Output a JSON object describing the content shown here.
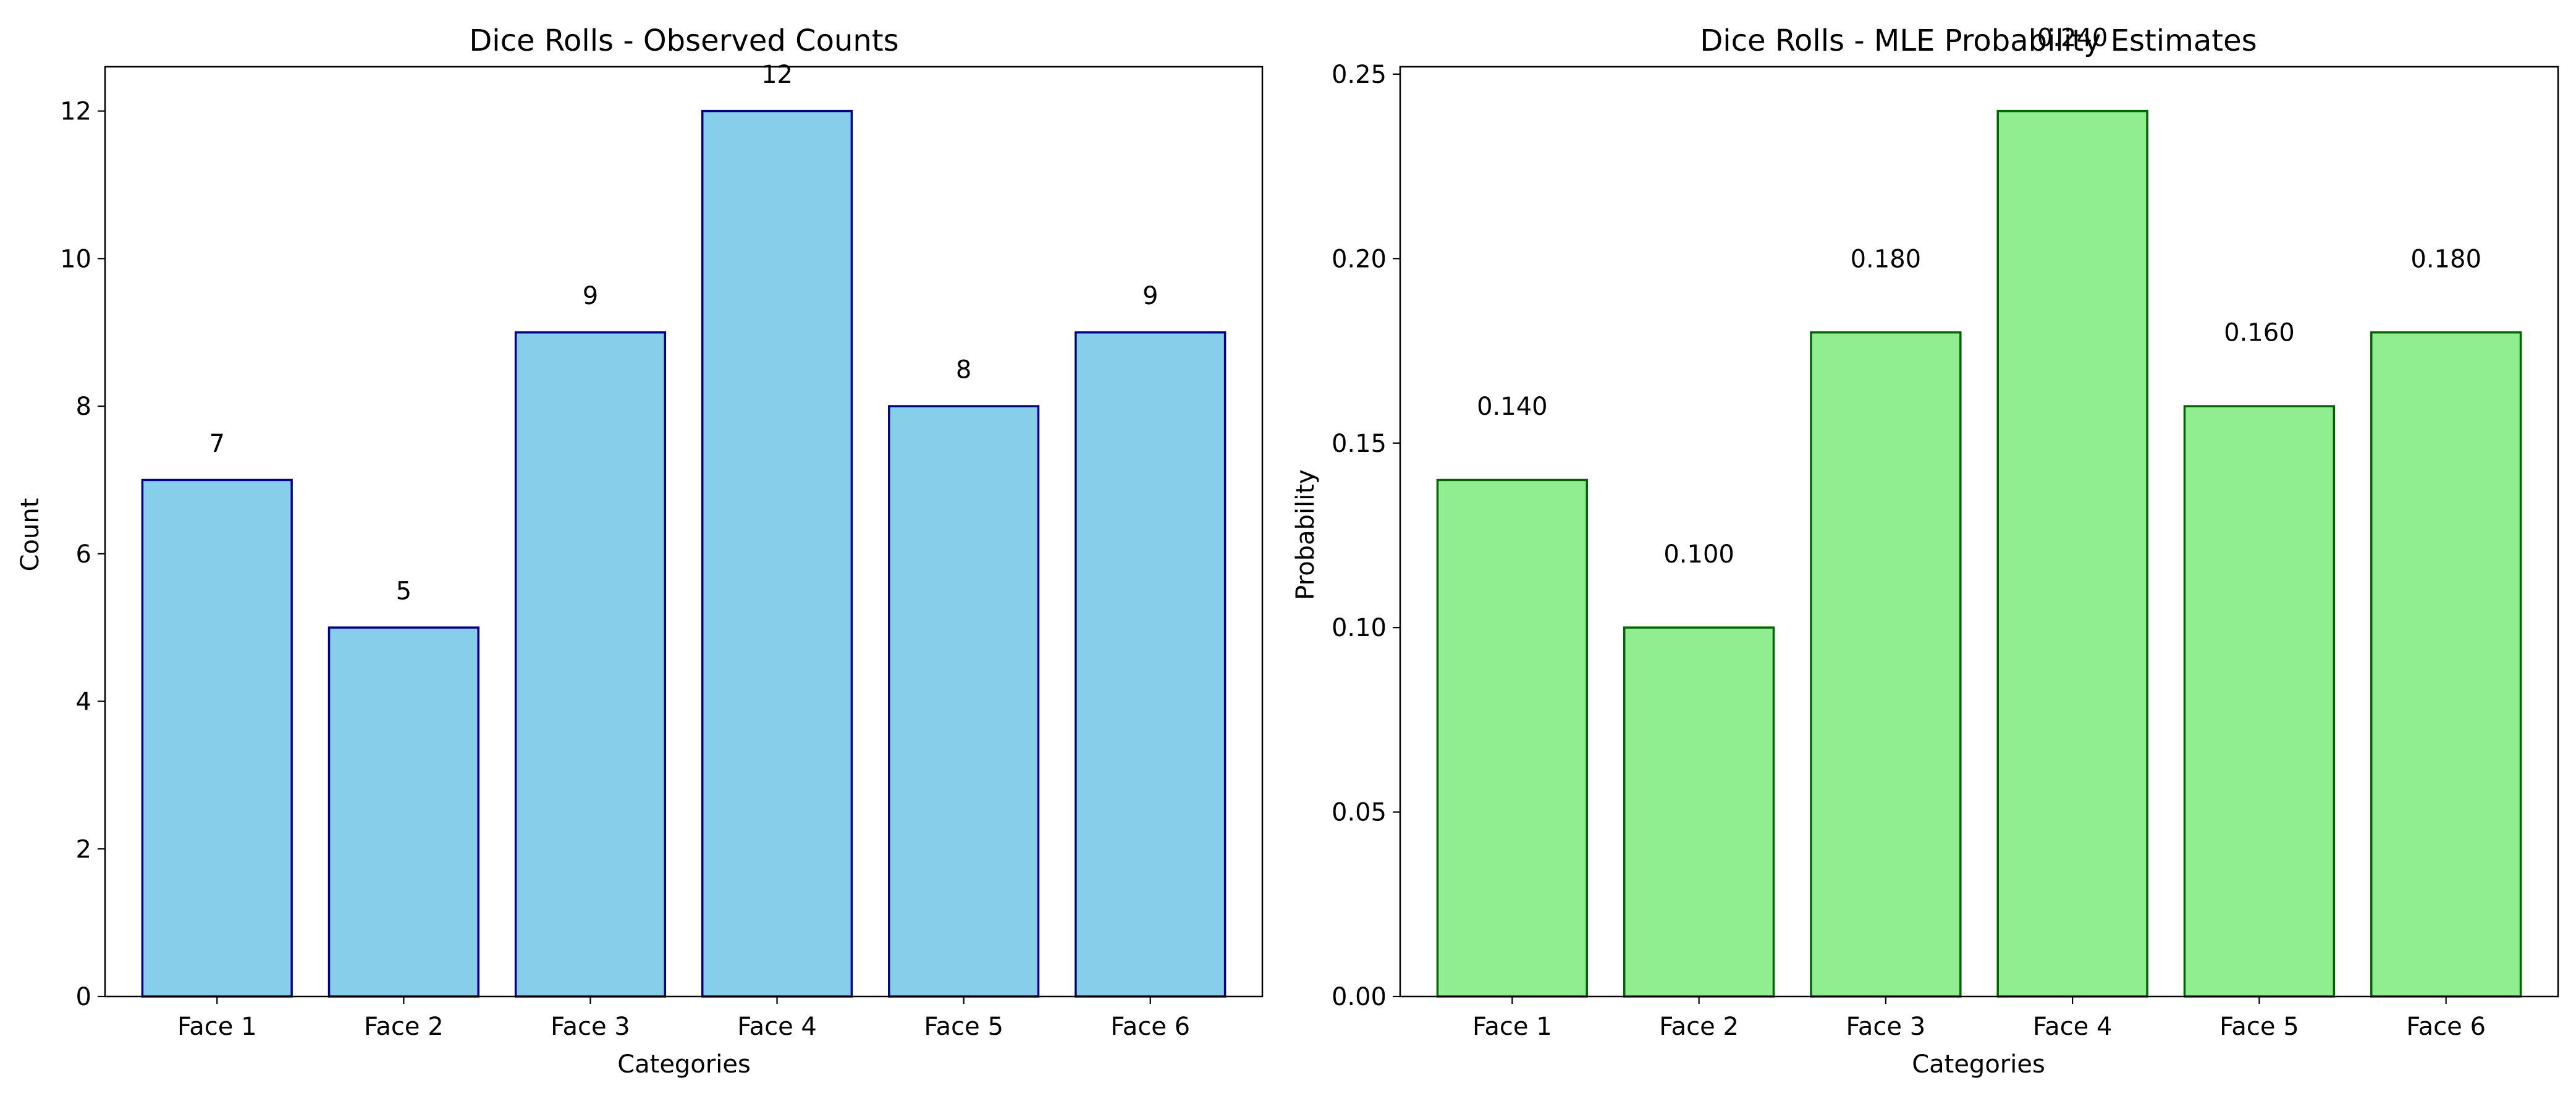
{
  "colors": {
    "counts_fill": "#87CEEB",
    "counts_edge": "#000080",
    "probs_fill": "#90EE90",
    "probs_edge": "#006400"
  },
  "chart_data": [
    {
      "type": "bar",
      "title": "Dice Rolls - Observed Counts",
      "xlabel": "Categories",
      "ylabel": "Count",
      "categories": [
        "Face 1",
        "Face 2",
        "Face 3",
        "Face 4",
        "Face 5",
        "Face 6"
      ],
      "values": [
        7,
        5,
        9,
        12,
        8,
        9
      ],
      "value_labels": [
        "7",
        "5",
        "9",
        "12",
        "8",
        "9"
      ],
      "ylim": [
        0,
        12.6
      ],
      "yticks": [
        0,
        2,
        4,
        6,
        8,
        10,
        12
      ],
      "ytick_labels": [
        "0",
        "2",
        "4",
        "6",
        "8",
        "10",
        "12"
      ],
      "label_offset": 0.5,
      "grid": false
    },
    {
      "type": "bar",
      "title": "Dice Rolls - MLE Probability Estimates",
      "xlabel": "Categories",
      "ylabel": "Probability",
      "categories": [
        "Face 1",
        "Face 2",
        "Face 3",
        "Face 4",
        "Face 5",
        "Face 6"
      ],
      "values": [
        0.14,
        0.1,
        0.18,
        0.24,
        0.16,
        0.18
      ],
      "value_labels": [
        "0.140",
        "0.100",
        "0.180",
        "0.240",
        "0.160",
        "0.180"
      ],
      "ylim": [
        0,
        0.252
      ],
      "yticks": [
        0,
        0.05,
        0.1,
        0.15,
        0.2,
        0.25
      ],
      "ytick_labels": [
        "0.00",
        "0.05",
        "0.10",
        "0.15",
        "0.20",
        "0.25"
      ],
      "label_offset": 0.02,
      "grid": false
    }
  ]
}
